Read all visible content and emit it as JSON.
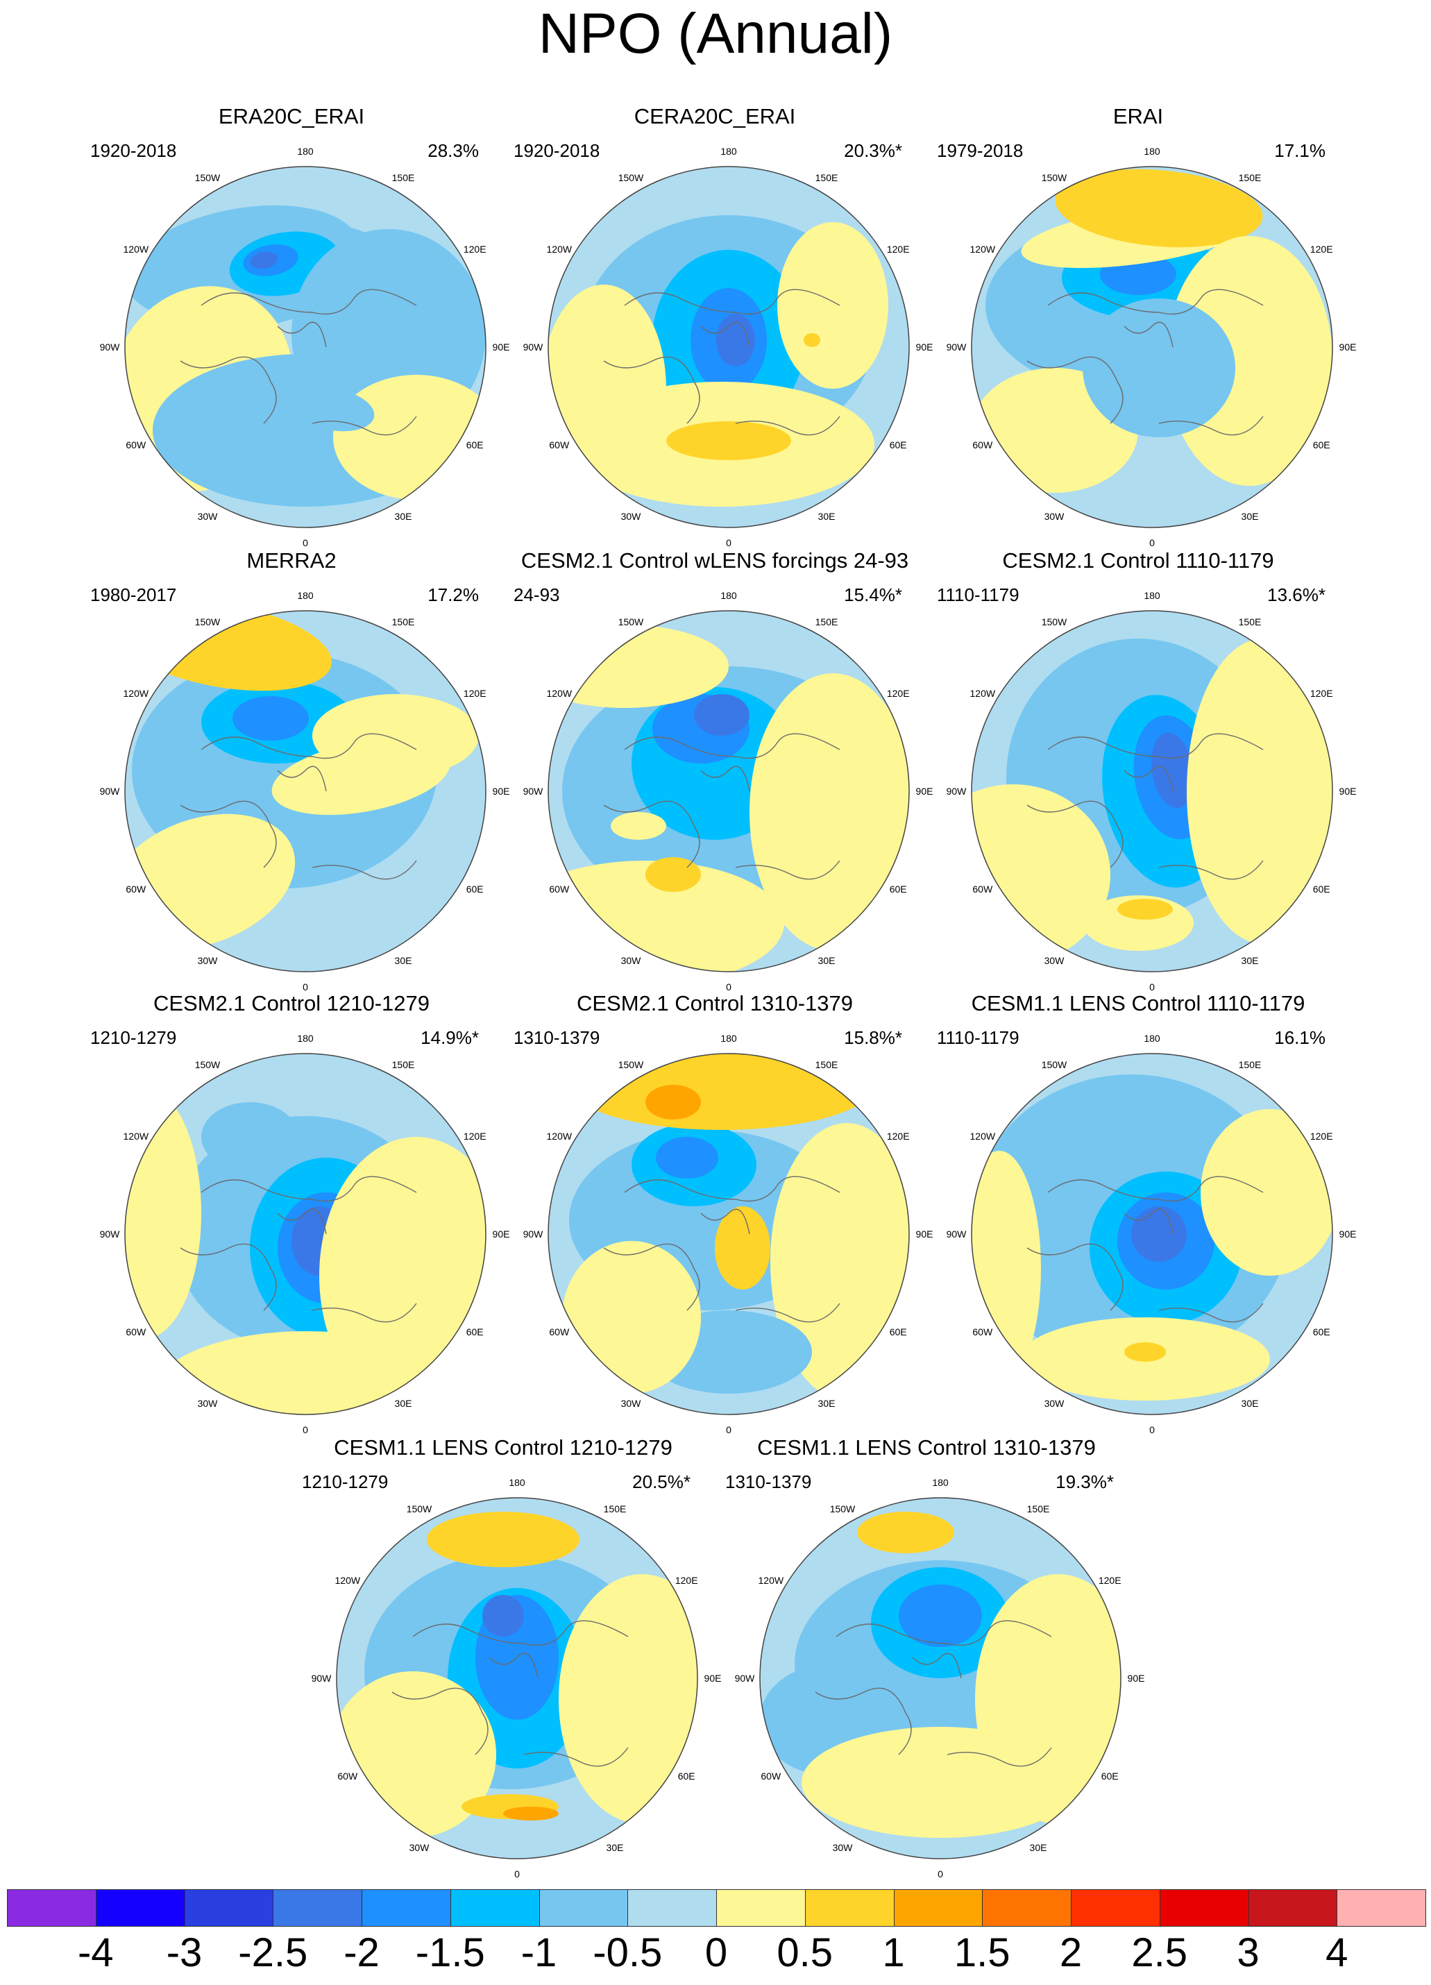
{
  "title": "NPO (Annual)",
  "chart_data": {
    "type": "polar-stereographic contour map panels",
    "title": "NPO (Annual)",
    "longitude_labels": [
      "180",
      "150E",
      "120E",
      "90E",
      "60E",
      "30E",
      "0",
      "30W",
      "60W",
      "90W",
      "120W",
      "150W"
    ],
    "colorbar": {
      "levels": [
        "-4",
        "-3",
        "-2.5",
        "-2",
        "-1.5",
        "-1",
        "-0.5",
        "0",
        "0.5",
        "1",
        "1.5",
        "2",
        "2.5",
        "3",
        "4"
      ],
      "colors": [
        "#8a2be2",
        "#1400ff",
        "#2a3fe0",
        "#3a78e8",
        "#1e90ff",
        "#00bfff",
        "#76c6f0",
        "#b0dcf0",
        "#fdf795",
        "#ffd42a",
        "#ffa500",
        "#ff7400",
        "#ff3000",
        "#e80000",
        "#c8161d",
        "#ffb0b0"
      ]
    },
    "panels": [
      {
        "title": "ERA20C_ERAI",
        "period": "1920-2018",
        "variance": "28.3%"
      },
      {
        "title": "CERA20C_ERAI",
        "period": "1920-2018",
        "variance": "20.3%*"
      },
      {
        "title": "ERAI",
        "period": "1979-2018",
        "variance": "17.1%"
      },
      {
        "title": "MERRA2",
        "period": "1980-2017",
        "variance": "17.2%"
      },
      {
        "title": "CESM2.1 Control wLENS forcings 24-93",
        "period": "24-93",
        "variance": "15.4%*"
      },
      {
        "title": "CESM2.1 Control 1110-1179",
        "period": "1110-1179",
        "variance": "13.6%*"
      },
      {
        "title": "CESM2.1 Control 1210-1279",
        "period": "1210-1279",
        "variance": "14.9%*"
      },
      {
        "title": "CESM2.1 Control 1310-1379",
        "period": "1310-1379",
        "variance": "15.8%*"
      },
      {
        "title": "CESM1.1 LENS Control 1110-1179",
        "period": "1110-1179",
        "variance": "16.1%"
      },
      {
        "title": "CESM1.1 LENS Control 1210-1279",
        "period": "1210-1279",
        "variance": "20.5%*"
      },
      {
        "title": "CESM1.1 LENS Control 1310-1379",
        "period": "1310-1379",
        "variance": "19.3%*"
      }
    ]
  }
}
